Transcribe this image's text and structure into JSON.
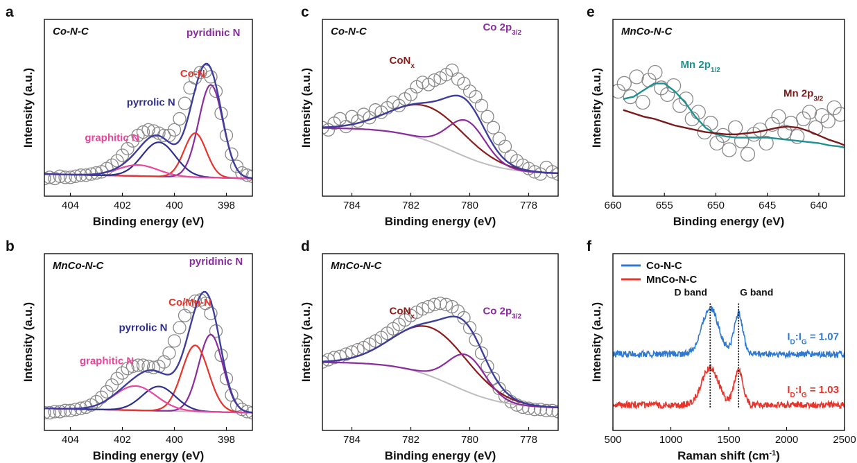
{
  "chart_data": [
    {
      "id": "a",
      "type": "scatter",
      "panel_label": "a",
      "sample": "Co-N-C",
      "xlabel": "Binding energy (eV)",
      "ylabel": "Intensity (a.u.)",
      "xlim": [
        405,
        397
      ],
      "ylim": [
        0,
        1.2
      ],
      "xticks": [
        404,
        402,
        400,
        398
      ],
      "background": "linear",
      "points": {
        "color": "#888888",
        "x": [
          405.0,
          404.8,
          404.6,
          404.4,
          404.2,
          404.0,
          403.8,
          403.6,
          403.4,
          403.2,
          403.0,
          402.8,
          402.6,
          402.4,
          402.2,
          402.0,
          401.8,
          401.6,
          401.4,
          401.2,
          401.0,
          400.8,
          400.6,
          400.4,
          400.2,
          400.0,
          399.8,
          399.6,
          399.4,
          399.2,
          399.0,
          398.8,
          398.6,
          398.4,
          398.2,
          398.0,
          397.8,
          397.6,
          397.4,
          397.2,
          397.0
        ],
        "y": [
          0.16,
          0.17,
          0.16,
          0.18,
          0.17,
          0.17,
          0.18,
          0.19,
          0.19,
          0.2,
          0.21,
          0.22,
          0.25,
          0.28,
          0.32,
          0.37,
          0.43,
          0.5,
          0.55,
          0.58,
          0.6,
          0.59,
          0.57,
          0.55,
          0.55,
          0.6,
          0.7,
          0.84,
          0.98,
          1.07,
          1.12,
          1.13,
          1.08,
          0.95,
          0.75,
          0.55,
          0.38,
          0.27,
          0.21,
          0.19,
          0.18
        ]
      },
      "peaks": [
        {
          "name": "pyridinic N",
          "center": 398.6,
          "height": 0.84,
          "fwhm": 1.1,
          "color": "#8a2b9e"
        },
        {
          "name": "Co-N",
          "center": 399.2,
          "height": 0.4,
          "fwhm": 1.0,
          "color": "#e8332a"
        },
        {
          "name": "pyrrolic N",
          "center": 400.6,
          "height": 0.31,
          "fwhm": 1.5,
          "color": "#2e2e8f"
        },
        {
          "name": "graphitic N",
          "center": 401.4,
          "height": 0.1,
          "fwhm": 1.8,
          "color": "#e8479a"
        }
      ],
      "envelope_color": "#3d3d9e",
      "annotations": [
        {
          "text": "pyridinic N",
          "x": 398.5,
          "y": 1.45,
          "color": "#8a2b9e"
        },
        {
          "text": "Co-N",
          "x": 399.3,
          "y": 1.08,
          "color": "#e8332a"
        },
        {
          "text": "pyrrolic N",
          "x": 400.9,
          "y": 0.82,
          "color": "#2e2e8f"
        },
        {
          "text": "graphitic N",
          "x": 402.4,
          "y": 0.5,
          "color": "#e8479a"
        }
      ]
    },
    {
      "id": "b",
      "type": "scatter",
      "panel_label": "b",
      "sample": "MnCo-N-C",
      "xlabel": "Binding energy (eV)",
      "ylabel": "Intensity (a.u.)",
      "xlim": [
        405,
        397
      ],
      "ylim": [
        0,
        1.2
      ],
      "xticks": [
        404,
        402,
        400,
        398
      ],
      "background": "linear",
      "points": {
        "color": "#888888",
        "x": [
          405.0,
          404.8,
          404.6,
          404.4,
          404.2,
          404.0,
          403.8,
          403.6,
          403.4,
          403.2,
          403.0,
          402.8,
          402.6,
          402.4,
          402.2,
          402.0,
          401.8,
          401.6,
          401.4,
          401.2,
          401.0,
          400.8,
          400.6,
          400.4,
          400.2,
          400.0,
          399.8,
          399.6,
          399.4,
          399.2,
          399.0,
          398.8,
          398.6,
          398.4,
          398.2,
          398.0,
          397.8,
          397.6,
          397.4,
          397.2,
          397.0
        ],
        "y": [
          0.16,
          0.16,
          0.17,
          0.17,
          0.18,
          0.18,
          0.19,
          0.2,
          0.21,
          0.23,
          0.26,
          0.3,
          0.35,
          0.41,
          0.47,
          0.52,
          0.56,
          0.58,
          0.59,
          0.59,
          0.58,
          0.57,
          0.58,
          0.62,
          0.7,
          0.81,
          0.93,
          1.04,
          1.12,
          1.17,
          1.18,
          1.15,
          1.06,
          0.9,
          0.68,
          0.47,
          0.32,
          0.23,
          0.19,
          0.17,
          0.16
        ]
      },
      "peaks": [
        {
          "name": "pyridinic N",
          "center": 398.6,
          "height": 0.7,
          "fwhm": 1.1,
          "color": "#8a2b9e"
        },
        {
          "name": "Co/Mn-N",
          "center": 399.2,
          "height": 0.6,
          "fwhm": 1.2,
          "color": "#e8332a"
        },
        {
          "name": "pyrrolic N",
          "center": 400.6,
          "height": 0.22,
          "fwhm": 1.5,
          "color": "#2e2e8f"
        },
        {
          "name": "graphitic N",
          "center": 401.5,
          "height": 0.22,
          "fwhm": 1.9,
          "color": "#e8479a"
        }
      ],
      "envelope_color": "#3d3d9e",
      "annotations": [
        {
          "text": "pyridinic N",
          "x": 398.4,
          "y": 1.5,
          "color": "#8a2b9e"
        },
        {
          "text": "Co/Mn-N",
          "x": 399.4,
          "y": 1.13,
          "color": "#e8332a"
        },
        {
          "text": "pyrrolic N",
          "x": 401.2,
          "y": 0.9,
          "color": "#2e2e8f"
        },
        {
          "text": "graphitic N",
          "x": 402.6,
          "y": 0.6,
          "color": "#e8479a"
        }
      ]
    },
    {
      "id": "c",
      "type": "scatter",
      "panel_label": "c",
      "sample": "Co-N-C",
      "xlabel": "Binding energy (eV)",
      "ylabel": "Intensity (a.u.)",
      "xlim": [
        785,
        777
      ],
      "ylim": [
        0,
        1.2
      ],
      "xticks": [
        784,
        782,
        780,
        778
      ],
      "background": "shirley",
      "points": {
        "color": "#888888",
        "x": [
          785.0,
          784.8,
          784.6,
          784.4,
          784.2,
          784.0,
          783.8,
          783.6,
          783.4,
          783.2,
          783.0,
          782.8,
          782.6,
          782.4,
          782.2,
          782.0,
          781.8,
          781.6,
          781.4,
          781.2,
          781.0,
          780.8,
          780.6,
          780.4,
          780.2,
          780.0,
          779.8,
          779.6,
          779.4,
          779.2,
          779.0,
          778.8,
          778.6,
          778.4,
          778.2,
          778.0,
          777.8,
          777.6,
          777.4,
          777.2,
          777.0
        ],
        "y": [
          0.62,
          0.6,
          0.66,
          0.7,
          0.63,
          0.72,
          0.68,
          0.74,
          0.71,
          0.78,
          0.76,
          0.8,
          0.85,
          0.82,
          0.88,
          0.92,
          0.99,
          1.03,
          1.01,
          1.05,
          1.07,
          1.1,
          1.14,
          1.06,
          1.02,
          0.95,
          0.9,
          0.82,
          0.72,
          0.62,
          0.52,
          0.45,
          0.36,
          0.32,
          0.28,
          0.25,
          0.22,
          0.2,
          0.26,
          0.22,
          0.2
        ]
      },
      "peaks": [
        {
          "name": "CoNx",
          "center": 781.4,
          "height": 0.31,
          "fwhm": 3.0,
          "color": "#8b1a1a"
        },
        {
          "name": "Co 2p3/2",
          "center": 780.1,
          "height": 0.33,
          "fwhm": 1.5,
          "color": "#8a2b9e"
        }
      ],
      "envelope_color": "#3d3d9e",
      "annotations": [
        {
          "type": "CoNx",
          "x": 782.3,
          "y": 1.2,
          "color": "#8b1a1a",
          "main": "CoN",
          "sub": "x"
        },
        {
          "type": "Co2p",
          "x": 778.9,
          "y": 1.5,
          "color": "#8a2b9e",
          "main": "Co 2p",
          "sub": "3/2"
        }
      ]
    },
    {
      "id": "d",
      "type": "scatter",
      "panel_label": "d",
      "sample": "MnCo-N-C",
      "xlabel": "Binding energy (eV)",
      "ylabel": "Intensity (a.u.)",
      "xlim": [
        785,
        777
      ],
      "ylim": [
        0,
        1.2
      ],
      "xticks": [
        784,
        782,
        780,
        778
      ],
      "background": "shirley",
      "points": {
        "color": "#888888",
        "x": [
          785.0,
          784.8,
          784.6,
          784.4,
          784.2,
          784.0,
          783.8,
          783.6,
          783.4,
          783.2,
          783.0,
          782.8,
          782.6,
          782.4,
          782.2,
          782.0,
          781.8,
          781.6,
          781.4,
          781.2,
          781.0,
          780.8,
          780.6,
          780.4,
          780.2,
          780.0,
          779.8,
          779.6,
          779.4,
          779.2,
          779.0,
          778.8,
          778.6,
          778.4,
          778.2,
          778.0,
          777.8,
          777.6,
          777.4,
          777.2,
          777.0
        ],
        "y": [
          0.62,
          0.64,
          0.66,
          0.67,
          0.69,
          0.71,
          0.73,
          0.75,
          0.78,
          0.81,
          0.84,
          0.88,
          0.92,
          0.96,
          1.0,
          1.04,
          1.07,
          1.1,
          1.12,
          1.14,
          1.15,
          1.14,
          1.12,
          1.08,
          1.02,
          0.93,
          0.82,
          0.7,
          0.58,
          0.47,
          0.38,
          0.31,
          0.26,
          0.23,
          0.21,
          0.2,
          0.19,
          0.19,
          0.18,
          0.18,
          0.17
        ]
      },
      "peaks": [
        {
          "name": "CoNx",
          "center": 781.3,
          "height": 0.44,
          "fwhm": 3.0,
          "color": "#8b1a1a"
        },
        {
          "name": "Co 2p3/2",
          "center": 780.1,
          "height": 0.33,
          "fwhm": 1.5,
          "color": "#8a2b9e"
        }
      ],
      "envelope_color": "#3d3d9e",
      "annotations": [
        {
          "type": "CoNx",
          "x": 782.3,
          "y": 1.05,
          "color": "#8b1a1a",
          "main": "CoN",
          "sub": "x"
        },
        {
          "type": "Co2p",
          "x": 778.9,
          "y": 1.05,
          "color": "#8a2b9e",
          "main": "Co 2p",
          "sub": "3/2"
        }
      ]
    },
    {
      "id": "e",
      "type": "scatter",
      "panel_label": "e",
      "sample": "MnCo-N-C",
      "xlabel": "Binding energy (eV)",
      "ylabel": "Intensity (a.u.)",
      "xlim": [
        660,
        637.5
      ],
      "ylim": [
        0,
        1.2
      ],
      "xticks": [
        660,
        655,
        650,
        645,
        640
      ],
      "points": {
        "color": "#888888",
        "x": [
          659.5,
          658.9,
          658.3,
          657.7,
          657.1,
          656.5,
          655.9,
          655.3,
          654.7,
          654.1,
          653.5,
          652.9,
          652.3,
          651.7,
          651.1,
          650.5,
          649.9,
          649.3,
          648.7,
          648.1,
          647.5,
          646.9,
          646.3,
          645.7,
          645.1,
          644.5,
          643.9,
          643.3,
          642.7,
          642.1,
          641.5,
          640.9,
          640.3,
          639.7,
          639.1,
          638.5,
          637.9
        ],
        "y": [
          0.95,
          1.02,
          0.9,
          1.08,
          0.85,
          1.05,
          1.12,
          0.98,
          0.92,
          1.0,
          0.82,
          0.88,
          0.7,
          0.76,
          0.58,
          0.66,
          0.48,
          0.55,
          0.42,
          0.62,
          0.5,
          0.38,
          0.56,
          0.6,
          0.48,
          0.65,
          0.72,
          0.58,
          0.66,
          0.54,
          0.7,
          0.76,
          0.62,
          0.73,
          0.68,
          0.8,
          0.74
        ]
      },
      "curves": [
        {
          "name": "Mn 2p1/2",
          "color": "#1f8f8f",
          "x": [
            659.0,
            658.0,
            657.0,
            656.0,
            655.0,
            654.0,
            653.0,
            652.0,
            651.0,
            650.0,
            649.0,
            648.0,
            647.0,
            646.0,
            645.0,
            644.0,
            643.0,
            642.0,
            641.0,
            640.0,
            639.0,
            638.0,
            637.5
          ],
          "y": [
            0.88,
            0.9,
            0.96,
            1.02,
            1.02,
            0.95,
            0.85,
            0.72,
            0.62,
            0.56,
            0.54,
            0.53,
            0.53,
            0.53,
            0.53,
            0.52,
            0.51,
            0.5,
            0.49,
            0.48,
            0.46,
            0.45,
            0.44
          ]
        },
        {
          "name": "Mn 2p3/2",
          "color": "#7a1a1a",
          "x": [
            659.0,
            658.0,
            657.0,
            656.0,
            655.0,
            654.0,
            653.0,
            652.0,
            651.0,
            650.0,
            649.0,
            648.0,
            647.0,
            646.0,
            645.0,
            644.0,
            643.0,
            642.0,
            641.0,
            640.0,
            639.0,
            638.0,
            637.5
          ],
          "y": [
            0.78,
            0.75,
            0.72,
            0.7,
            0.67,
            0.64,
            0.62,
            0.6,
            0.58,
            0.57,
            0.56,
            0.56,
            0.57,
            0.58,
            0.6,
            0.62,
            0.63,
            0.62,
            0.59,
            0.55,
            0.51,
            0.48,
            0.46
          ]
        }
      ],
      "annotations": [
        {
          "type": "Mn12",
          "x": 651.5,
          "y": 1.16,
          "color": "#1f8f8f",
          "main": "Mn 2p",
          "sub": "1/2"
        },
        {
          "type": "Mn32",
          "x": 641.5,
          "y": 0.9,
          "color": "#7a1a1a",
          "main": "Mn 2p",
          "sub": "3/2"
        }
      ]
    },
    {
      "id": "f",
      "type": "line",
      "panel_label": "f",
      "xlabel": "Raman shift (cm",
      "xlabel_sup": "-1",
      "xlabel_tail": ")",
      "ylabel": "Intensity (a.u.)",
      "xlim": [
        500,
        2500
      ],
      "ylim": [
        0,
        1.2
      ],
      "xticks": [
        500,
        1000,
        1500,
        2000,
        2500
      ],
      "legend_position": "top-left",
      "series": [
        {
          "name": "Co-N-C",
          "color": "#2e78d2",
          "baseline": 0.69,
          "d_band": {
            "center": 1340,
            "height": 0.42
          },
          "g_band": {
            "center": 1585,
            "height": 0.37
          }
        },
        {
          "name": "MnCo-N-C",
          "color": "#e8332a",
          "baseline": 0.23,
          "d_band": {
            "center": 1340,
            "height": 0.34
          },
          "g_band": {
            "center": 1585,
            "height": 0.31
          }
        }
      ],
      "band_markers": [
        {
          "label": "D band",
          "x": 1340
        },
        {
          "label": "G band",
          "x": 1585
        }
      ],
      "ratios": [
        {
          "series": "Co-N-C",
          "main": "I",
          "s1": "D",
          "mid": ":I",
          "s2": "G",
          "tail": " = 1.07"
        },
        {
          "series": "MnCo-N-C",
          "main": "I",
          "s1": "D",
          "mid": ":I",
          "s2": "G",
          "tail": " = 1.03"
        }
      ]
    }
  ]
}
